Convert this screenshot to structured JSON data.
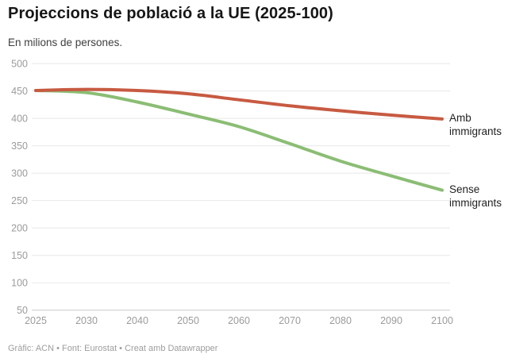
{
  "header": {
    "title": "Projeccions de població a la UE (2025-100)",
    "subtitle": "En milions de persones."
  },
  "chart_data": {
    "type": "line",
    "categories": [
      "2025",
      "2030",
      "2040",
      "2050",
      "2060",
      "2070",
      "2080",
      "2090",
      "2100"
    ],
    "series": [
      {
        "name": "Amb immigrants",
        "color": "#c75a41",
        "values": [
          451,
          453,
          451,
          445,
          434,
          423,
          414,
          406,
          399
        ]
      },
      {
        "name": "Sense immigrants",
        "color": "#8bbd74",
        "values": [
          451,
          447,
          430,
          408,
          385,
          354,
          322,
          295,
          269
        ]
      }
    ],
    "title": "Projeccions de població a la UE (2025-100)",
    "subtitle_as_ylabel": "En milions de persones.",
    "xlabel": "",
    "ylabel": "",
    "ylim": [
      50,
      500
    ],
    "ytick_step": 50,
    "yticks": [
      50,
      100,
      150,
      200,
      250,
      300,
      350,
      400,
      450,
      500
    ],
    "grid": true,
    "legend_position": "right-of-line-ends",
    "axis_label_color": "#9b9b9b",
    "gridline_color": "#e8e8e8",
    "baseline_color": "#c9c9c9",
    "line_width": 4
  },
  "footer": {
    "credit": "Gràfic: ACN • Font: Eurostat • Creat amb Datawrapper"
  }
}
